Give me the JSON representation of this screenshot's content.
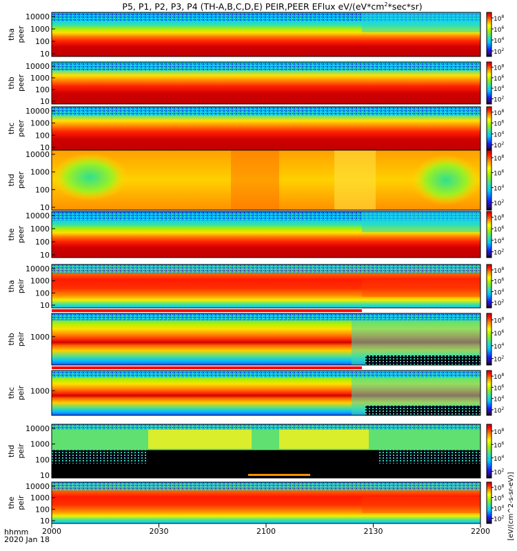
{
  "chart_data": {
    "type": "heatmap",
    "title": "P5, P1, P2, P3, P4 (TH-A,B,C,D,E) PEIR,PEER EFlux eV/(eV*cm",
    "title_sup": "2",
    "title_tail": "*sec*sr)",
    "x_axis": {
      "ticks": [
        "2000",
        "2030",
        "2100",
        "2130",
        "2200"
      ],
      "corner_label": "hhmm",
      "date_label": "2020 Jan 18"
    },
    "colorbar": {
      "ticks": [
        "10",
        "2",
        "10",
        "4",
        "10",
        "6",
        "10",
        "8"
      ],
      "tick_values": [
        2,
        4,
        6,
        8
      ],
      "label": "[eV/(cm^2-s-sr-eV)]"
    },
    "panels": [
      {
        "probe": "tha",
        "species": "peer",
        "yticks": [
          "10000",
          "1000",
          "100",
          "10"
        ],
        "yvalues": [
          10000,
          1000,
          100,
          10
        ]
      },
      {
        "probe": "thb",
        "species": "peer",
        "yticks": [
          "10000",
          "1000",
          "100",
          "10"
        ],
        "yvalues": [
          10000,
          1000,
          100,
          10
        ]
      },
      {
        "probe": "thc",
        "species": "peer",
        "yticks": [
          "10000",
          "1000",
          "100",
          "10"
        ],
        "yvalues": [
          10000,
          1000,
          100,
          10
        ]
      },
      {
        "probe": "thd",
        "species": "peer",
        "yticks": [
          "10000",
          "1000",
          "100",
          "10"
        ],
        "yvalues": [
          10000,
          1000,
          100,
          10
        ]
      },
      {
        "probe": "the",
        "species": "peer",
        "yticks": [
          "10000",
          "1000",
          "100",
          "10"
        ],
        "yvalues": [
          10000,
          1000,
          100,
          10
        ]
      },
      {
        "probe": "tha",
        "species": "peir",
        "yticks": [
          "10000",
          "1000",
          "100",
          "10"
        ],
        "yvalues": [
          10000,
          1000,
          100,
          10
        ]
      },
      {
        "probe": "thb",
        "species": "peir",
        "yticks": [
          "1000"
        ],
        "yvalues": [
          1000
        ]
      },
      {
        "probe": "thc",
        "species": "peir",
        "yticks": [
          "1000"
        ],
        "yvalues": [
          1000
        ]
      },
      {
        "probe": "thd",
        "species": "peir",
        "yticks": [
          "10000",
          "1000",
          "100",
          "10"
        ],
        "yvalues": [
          10000,
          1000,
          100,
          10
        ]
      },
      {
        "probe": "the",
        "species": "peir",
        "yticks": [
          "10000",
          "1000",
          "100",
          "10"
        ],
        "yvalues": [
          10000,
          1000,
          100,
          10
        ]
      }
    ]
  }
}
